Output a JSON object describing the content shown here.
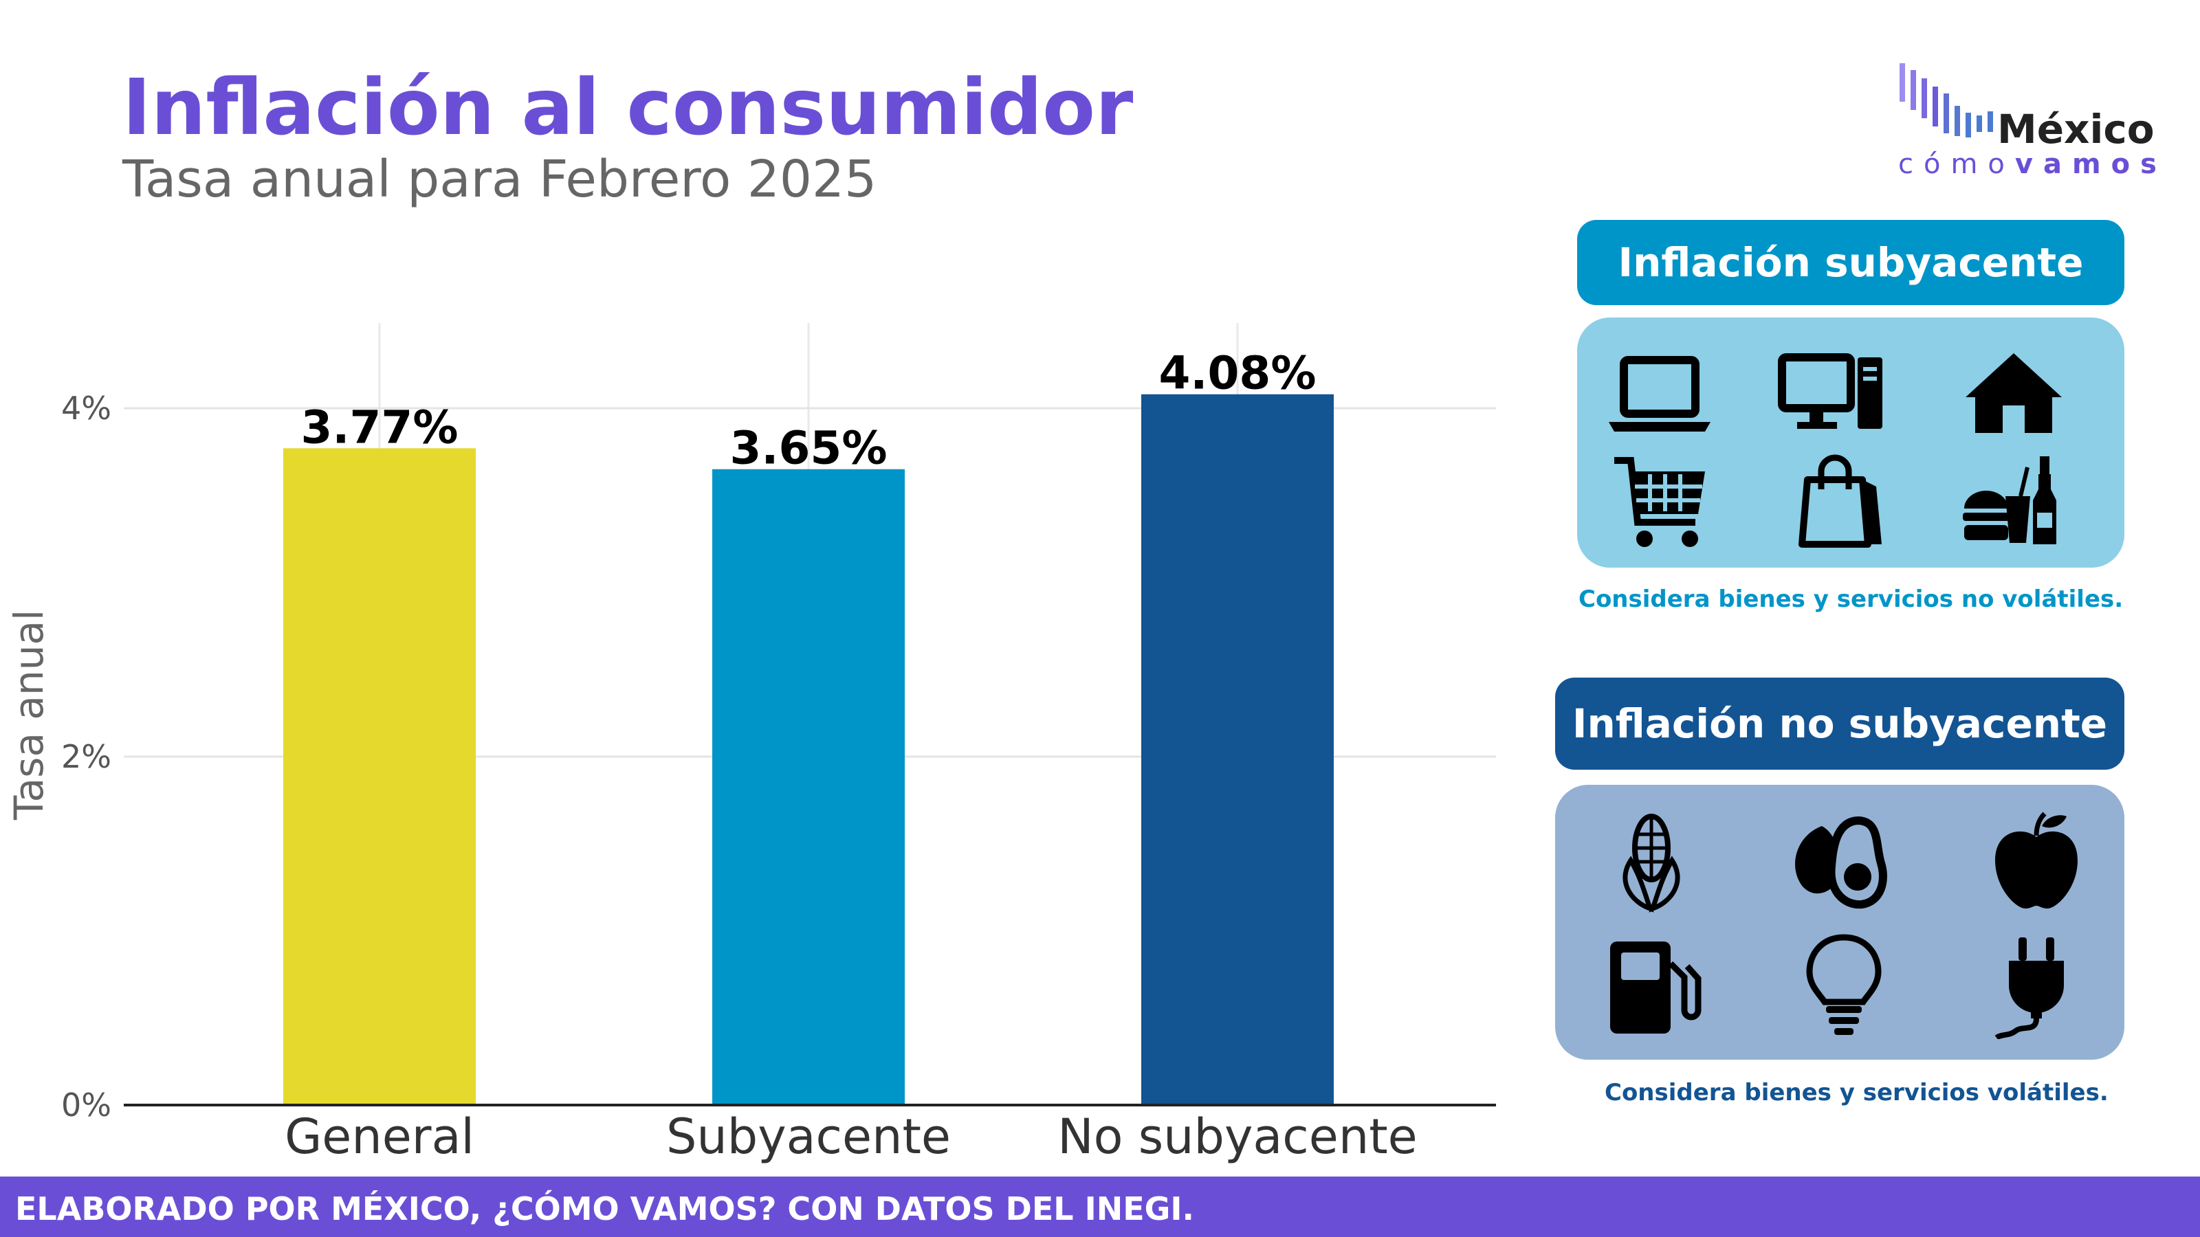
{
  "header": {
    "title": "Inflación al consumidor",
    "subtitle": "Tasa anual para Febrero 2025"
  },
  "logo": {
    "word": "México",
    "sub_light": "cómo",
    "sub_bold": "vamos",
    "colors": [
      "#9b8ef0",
      "#6a4fd6",
      "#4b7bd0"
    ]
  },
  "chart_data": {
    "type": "bar",
    "categories": [
      "General",
      "Subyacente",
      "No subyacente"
    ],
    "values": [
      3.77,
      3.65,
      4.08
    ],
    "value_labels": [
      "3.77%",
      "3.65%",
      "4.08%"
    ],
    "colors": [
      "#e5d92e",
      "#0095c8",
      "#135493"
    ],
    "ylabel": "Tasa anual",
    "xlabel": "",
    "ylim": [
      0,
      4.5
    ],
    "yticks": [
      0,
      2,
      4
    ],
    "ytick_labels": [
      "0%",
      "2%",
      "4%"
    ],
    "grid": true
  },
  "core_box": {
    "title": "Inflación subyacente",
    "note": "Considera bienes y servicios no volátiles.",
    "title_color": "#0095c8",
    "panel_color": "#8ccfe6",
    "icons": [
      "laptop-icon",
      "desktop-computer-icon",
      "house-icon",
      "shopping-cart-icon",
      "shopping-bag-icon",
      "fast-food-icon"
    ]
  },
  "noncore_box": {
    "title": "Inflación no subyacente",
    "note": "Considera bienes y servicios volátiles.",
    "title_color": "#135493",
    "panel_color": "#94b1d3",
    "icons": [
      "corn-icon",
      "avocado-icon",
      "apple-icon",
      "fuel-pump-icon",
      "light-bulb-icon",
      "electric-plug-icon"
    ]
  },
  "footer": {
    "text": "ELABORADO POR MÉXICO, ¿CÓMO VAMOS? CON DATOS DEL INEGI.",
    "color": "#6a4fd6"
  }
}
